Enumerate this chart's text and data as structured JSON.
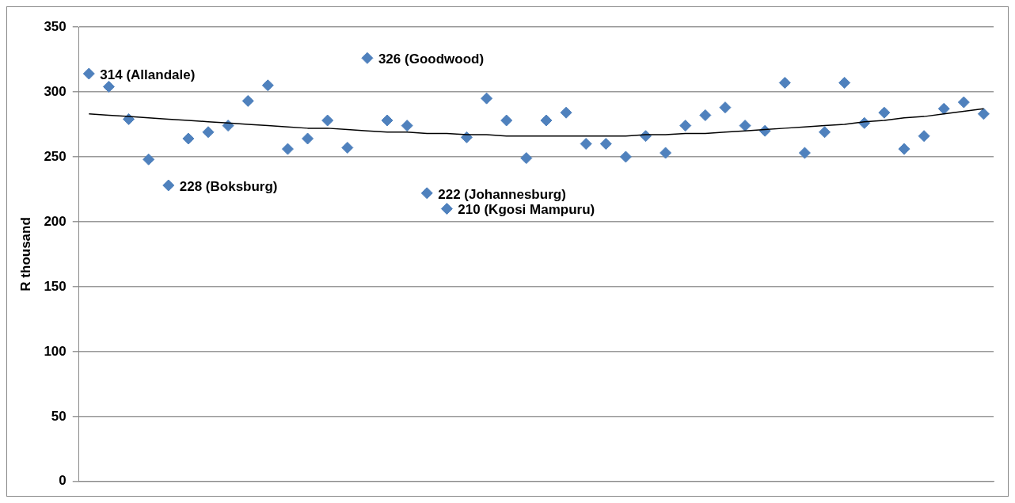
{
  "chart_data": {
    "type": "scatter",
    "ylabel": "R thousand",
    "ylim": [
      0,
      350
    ],
    "yticks": [
      0,
      50,
      100,
      150,
      200,
      250,
      300,
      350
    ],
    "tick_labels": "y",
    "grid": "y",
    "legend": false,
    "marker": "diamond",
    "categories": [
      null,
      null,
      null,
      null,
      null,
      null,
      null,
      null,
      null,
      null,
      null,
      null,
      null,
      null,
      null,
      null,
      null,
      null,
      null,
      null,
      null,
      null,
      null,
      null,
      null,
      null,
      null,
      null,
      null,
      null,
      null,
      null,
      null,
      null,
      null,
      null,
      null,
      null,
      null,
      null,
      null,
      null,
      null,
      null,
      null,
      null
    ],
    "series": [
      {
        "color": "#4f81bd",
        "values": [
          314,
          304,
          279,
          248,
          228,
          264,
          269,
          274,
          293,
          305,
          256,
          264,
          278,
          257,
          326,
          278,
          274,
          222,
          210,
          265,
          295,
          278,
          249,
          278,
          284,
          260,
          260,
          250,
          266,
          253,
          274,
          282,
          288,
          274,
          270,
          307,
          253,
          269,
          307,
          276,
          284,
          256,
          266,
          287,
          292,
          283
        ],
        "value_labels": [
          "314 (Allandale)",
          null,
          null,
          null,
          "228 (Boksburg)",
          null,
          null,
          null,
          null,
          null,
          null,
          null,
          null,
          null,
          "326 (Goodwood)",
          null,
          null,
          "222 (Johannesburg)",
          "210 (Kgosi Mampuru)",
          null,
          null,
          null,
          null,
          null,
          null,
          null,
          null,
          null,
          null,
          null,
          null,
          null,
          null,
          null,
          null,
          null,
          null,
          null,
          null,
          null,
          null,
          null,
          null,
          null,
          null,
          null
        ]
      },
      {
        "type": "line",
        "color": "#000000",
        "marker": "none",
        "values": [
          283,
          282,
          281,
          280,
          279,
          278,
          277,
          276,
          275,
          274,
          273,
          272,
          272,
          271,
          270,
          269,
          269,
          268,
          268,
          267,
          267,
          266,
          266,
          266,
          266,
          266,
          266,
          266,
          267,
          267,
          268,
          268,
          269,
          270,
          271,
          272,
          273,
          274,
          275,
          277,
          278,
          280,
          281,
          283,
          285,
          287
        ]
      }
    ]
  }
}
